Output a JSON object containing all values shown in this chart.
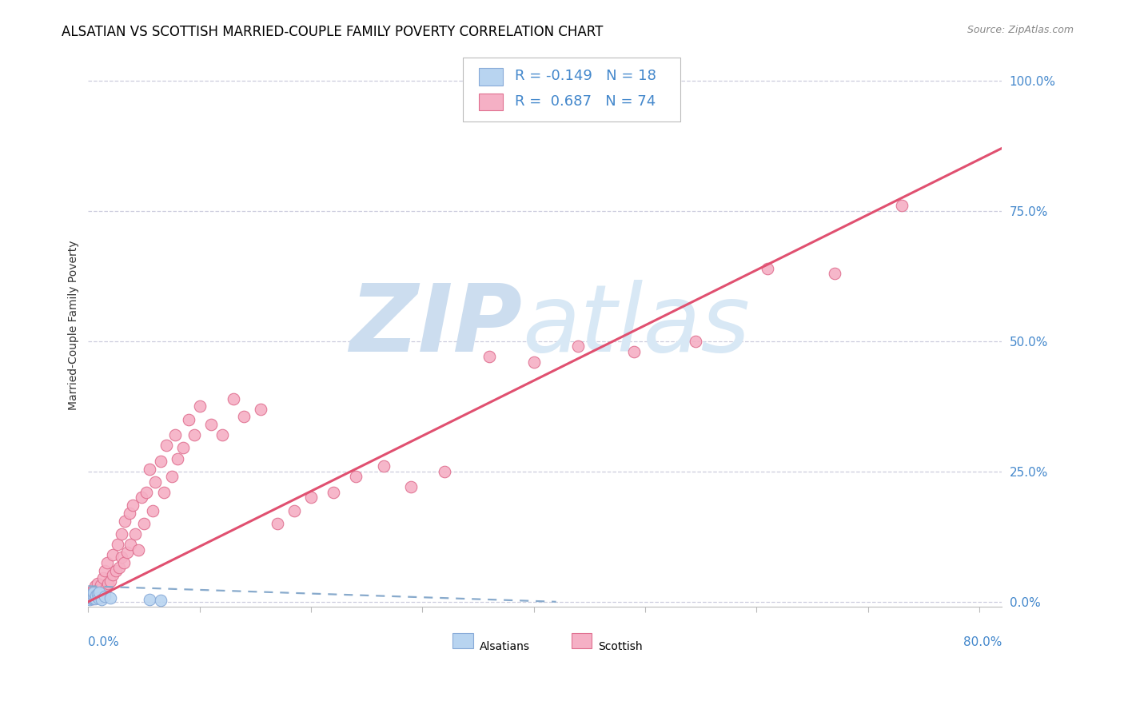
{
  "title": "ALSATIAN VS SCOTTISH MARRIED-COUPLE FAMILY POVERTY CORRELATION CHART",
  "source": "Source: ZipAtlas.com",
  "ylabel": "Married-Couple Family Poverty",
  "xlim": [
    0.0,
    0.82
  ],
  "ylim": [
    -0.01,
    1.07
  ],
  "yticks": [
    0.0,
    0.25,
    0.5,
    0.75,
    1.0
  ],
  "ytick_labels": [
    "0.0%",
    "25.0%",
    "50.0%",
    "75.0%",
    "100.0%"
  ],
  "xtick_positions": [
    0.0,
    0.1,
    0.2,
    0.3,
    0.4,
    0.5,
    0.6,
    0.7,
    0.8
  ],
  "alsatian_R": -0.149,
  "alsatian_N": 18,
  "scottish_R": 0.687,
  "scottish_N": 74,
  "alsatian_color": "#b8d4f0",
  "alsatian_edge_color": "#88aad8",
  "scottish_color": "#f5b0c5",
  "scottish_edge_color": "#e07090",
  "alsatian_line_color": "#88aacc",
  "scottish_line_color": "#e05070",
  "background_color": "#ffffff",
  "grid_color": "#ccccdd",
  "title_fontsize": 12,
  "source_fontsize": 9,
  "legend_fontsize": 13,
  "right_label_color": "#4488cc",
  "scatter_size": 110,
  "scottish_line_x0": 0.0,
  "scottish_line_y0": 0.0,
  "scottish_line_x1": 0.82,
  "scottish_line_y1": 0.87,
  "alsatian_line_x0": 0.0,
  "alsatian_line_y0": 0.03,
  "alsatian_line_x1": 0.42,
  "alsatian_line_y1": 0.0,
  "alsatian_x": [
    0.001,
    0.002,
    0.002,
    0.003,
    0.003,
    0.004,
    0.005,
    0.005,
    0.006,
    0.007,
    0.008,
    0.009,
    0.01,
    0.012,
    0.015,
    0.02,
    0.055,
    0.065
  ],
  "alsatian_y": [
    0.005,
    0.008,
    0.012,
    0.006,
    0.015,
    0.008,
    0.01,
    0.018,
    0.006,
    0.012,
    0.015,
    0.008,
    0.018,
    0.005,
    0.01,
    0.008,
    0.004,
    0.003
  ],
  "scottish_x": [
    0.002,
    0.003,
    0.003,
    0.004,
    0.005,
    0.005,
    0.006,
    0.006,
    0.007,
    0.008,
    0.008,
    0.009,
    0.01,
    0.011,
    0.012,
    0.013,
    0.015,
    0.015,
    0.016,
    0.017,
    0.018,
    0.02,
    0.022,
    0.022,
    0.025,
    0.026,
    0.028,
    0.03,
    0.03,
    0.032,
    0.033,
    0.035,
    0.037,
    0.038,
    0.04,
    0.042,
    0.045,
    0.048,
    0.05,
    0.052,
    0.055,
    0.058,
    0.06,
    0.065,
    0.068,
    0.07,
    0.075,
    0.078,
    0.08,
    0.085,
    0.09,
    0.095,
    0.1,
    0.11,
    0.12,
    0.13,
    0.14,
    0.155,
    0.17,
    0.185,
    0.2,
    0.22,
    0.24,
    0.265,
    0.29,
    0.32,
    0.36,
    0.4,
    0.44,
    0.49,
    0.545,
    0.61,
    0.67,
    0.73
  ],
  "scottish_y": [
    0.008,
    0.012,
    0.02,
    0.006,
    0.015,
    0.025,
    0.01,
    0.03,
    0.012,
    0.018,
    0.035,
    0.022,
    0.008,
    0.032,
    0.015,
    0.045,
    0.02,
    0.06,
    0.028,
    0.075,
    0.035,
    0.04,
    0.09,
    0.052,
    0.06,
    0.11,
    0.065,
    0.085,
    0.13,
    0.075,
    0.155,
    0.095,
    0.17,
    0.11,
    0.185,
    0.13,
    0.1,
    0.2,
    0.15,
    0.21,
    0.255,
    0.175,
    0.23,
    0.27,
    0.21,
    0.3,
    0.24,
    0.32,
    0.275,
    0.295,
    0.35,
    0.32,
    0.375,
    0.34,
    0.32,
    0.39,
    0.355,
    0.37,
    0.15,
    0.175,
    0.2,
    0.21,
    0.24,
    0.26,
    0.22,
    0.25,
    0.47,
    0.46,
    0.49,
    0.48,
    0.5,
    0.64,
    0.63,
    0.76
  ]
}
